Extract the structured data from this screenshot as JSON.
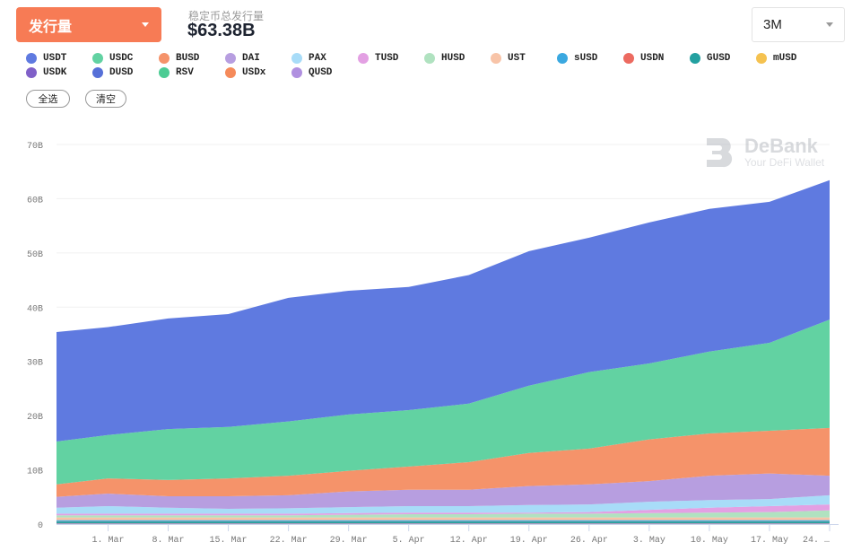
{
  "header": {
    "metric_select": "发行量",
    "total_label": "稳定币总发行量",
    "total_value": "$63.38B",
    "range_select": "3M"
  },
  "legend": [
    {
      "label": "USDT",
      "color": "#5f7ae0"
    },
    {
      "label": "USDC",
      "color": "#62d2a2"
    },
    {
      "label": "BUSD",
      "color": "#f5936a"
    },
    {
      "label": "DAI",
      "color": "#b79ee0"
    },
    {
      "label": "PAX",
      "color": "#a8dcf8"
    },
    {
      "label": "TUSD",
      "color": "#e3a0e3"
    },
    {
      "label": "HUSD",
      "color": "#b0e2c0"
    },
    {
      "label": "UST",
      "color": "#f8c4a8"
    },
    {
      "label": "sUSD",
      "color": "#3aa8e0"
    },
    {
      "label": "USDN",
      "color": "#ec6a60"
    },
    {
      "label": "GUSD",
      "color": "#23a0a0"
    },
    {
      "label": "mUSD",
      "color": "#f5c250"
    },
    {
      "label": "USDK",
      "color": "#8060c8"
    },
    {
      "label": "DUSD",
      "color": "#5670d8"
    },
    {
      "label": "RSV",
      "color": "#4ccc94"
    },
    {
      "label": "USDx",
      "color": "#f58a5a"
    },
    {
      "label": "QUSD",
      "color": "#b090e0"
    }
  ],
  "buttons": {
    "select_all": "全选",
    "clear": "清空"
  },
  "watermark": {
    "name": "DeBank",
    "tagline": "Your DeFi Wallet"
  },
  "chart_data": {
    "type": "area",
    "stacked": true,
    "x": [
      "2021-02-23",
      "2021-03-01",
      "2021-03-08",
      "2021-03-15",
      "2021-03-22",
      "2021-03-29",
      "2021-04-05",
      "2021-04-12",
      "2021-04-19",
      "2021-04-26",
      "2021-05-03",
      "2021-05-10",
      "2021-05-17",
      "2021-05-24"
    ],
    "xlim": [
      "2021-02-23",
      "2021-05-24"
    ],
    "x_tick_labels": [
      "1. Mar",
      "8. Mar",
      "15. Mar",
      "22. Mar",
      "29. Mar",
      "5. Apr",
      "12. Apr",
      "19. Apr",
      "26. Apr",
      "3. May",
      "10. May",
      "17. May",
      "24. …"
    ],
    "y_tick_labels": [
      "0",
      "10B",
      "20B",
      "30B",
      "40B",
      "50B",
      "60B",
      "70B"
    ],
    "ylim": [
      0,
      70
    ],
    "unit": "B USD",
    "grid": true,
    "series": [
      {
        "name": "QUSD",
        "values": [
          0.01,
          0.01,
          0.01,
          0.01,
          0.01,
          0.01,
          0.01,
          0.01,
          0.01,
          0.01,
          0.01,
          0.01,
          0.01,
          0.01
        ]
      },
      {
        "name": "USDx",
        "values": [
          0.01,
          0.01,
          0.01,
          0.01,
          0.01,
          0.01,
          0.01,
          0.01,
          0.01,
          0.01,
          0.01,
          0.01,
          0.01,
          0.01
        ]
      },
      {
        "name": "RSV",
        "values": [
          0.02,
          0.02,
          0.02,
          0.02,
          0.02,
          0.02,
          0.02,
          0.02,
          0.02,
          0.02,
          0.02,
          0.02,
          0.02,
          0.02
        ]
      },
      {
        "name": "DUSD",
        "values": [
          0.01,
          0.01,
          0.01,
          0.01,
          0.01,
          0.01,
          0.01,
          0.01,
          0.01,
          0.01,
          0.01,
          0.01,
          0.01,
          0.01
        ]
      },
      {
        "name": "USDK",
        "values": [
          0.1,
          0.1,
          0.1,
          0.1,
          0.1,
          0.1,
          0.1,
          0.1,
          0.1,
          0.1,
          0.1,
          0.1,
          0.1,
          0.1
        ]
      },
      {
        "name": "mUSD",
        "values": [
          0.02,
          0.02,
          0.02,
          0.02,
          0.02,
          0.02,
          0.02,
          0.02,
          0.02,
          0.02,
          0.02,
          0.02,
          0.02,
          0.02
        ]
      },
      {
        "name": "GUSD",
        "values": [
          0.3,
          0.3,
          0.3,
          0.3,
          0.3,
          0.3,
          0.3,
          0.3,
          0.3,
          0.3,
          0.3,
          0.3,
          0.3,
          0.3
        ]
      },
      {
        "name": "USDN",
        "values": [
          0.05,
          0.05,
          0.05,
          0.05,
          0.05,
          0.05,
          0.05,
          0.05,
          0.05,
          0.05,
          0.05,
          0.05,
          0.05,
          0.05
        ]
      },
      {
        "name": "sUSD",
        "values": [
          0.2,
          0.2,
          0.2,
          0.2,
          0.2,
          0.2,
          0.2,
          0.2,
          0.2,
          0.2,
          0.2,
          0.2,
          0.2,
          0.2
        ]
      },
      {
        "name": "UST",
        "values": [
          0.5,
          0.5,
          0.5,
          0.5,
          0.5,
          0.5,
          0.5,
          0.5,
          0.5,
          0.5,
          0.5,
          0.5,
          0.5,
          0.5
        ]
      },
      {
        "name": "HUSD",
        "values": [
          0.4,
          0.4,
          0.4,
          0.4,
          0.4,
          0.5,
          0.6,
          0.6,
          0.7,
          0.7,
          0.8,
          0.9,
          1.0,
          1.3
        ]
      },
      {
        "name": "TUSD",
        "values": [
          0.3,
          0.3,
          0.3,
          0.3,
          0.3,
          0.3,
          0.3,
          0.3,
          0.2,
          0.3,
          0.6,
          0.9,
          1.1,
          1.1
        ]
      },
      {
        "name": "PAX",
        "values": [
          1.1,
          1.4,
          1.1,
          0.9,
          1.0,
          1.1,
          1.2,
          1.2,
          1.4,
          1.4,
          1.5,
          1.4,
          1.3,
          1.7
        ]
      },
      {
        "name": "DAI",
        "values": [
          2.0,
          2.3,
          2.1,
          2.3,
          2.4,
          2.9,
          3.0,
          3.0,
          3.5,
          3.7,
          3.8,
          4.5,
          4.7,
          3.6
        ]
      },
      {
        "name": "BUSD",
        "values": [
          2.3,
          2.8,
          3.0,
          3.3,
          3.6,
          3.8,
          4.3,
          5.1,
          6.1,
          6.6,
          7.7,
          7.8,
          7.9,
          8.8
        ]
      },
      {
        "name": "USDC",
        "values": [
          7.9,
          8.0,
          9.4,
          9.5,
          10.0,
          10.4,
          10.4,
          10.8,
          12.4,
          14.1,
          14.0,
          15.1,
          16.2,
          20.0
        ]
      },
      {
        "name": "USDT",
        "values": [
          20.2,
          19.9,
          20.4,
          20.8,
          22.8,
          22.8,
          22.7,
          23.7,
          24.8,
          24.8,
          26.0,
          26.3,
          26.0,
          25.7
        ]
      }
    ]
  }
}
